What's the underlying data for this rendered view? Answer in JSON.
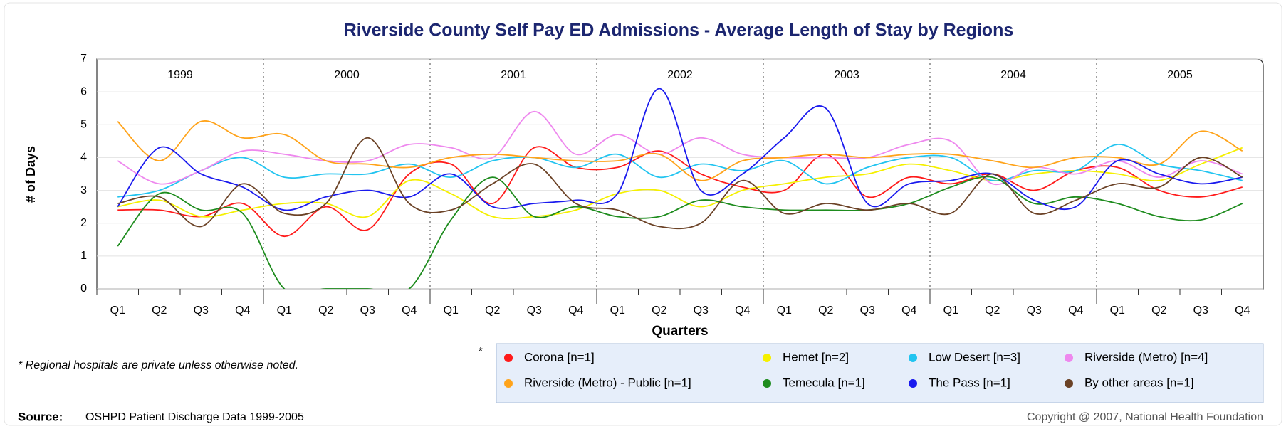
{
  "chart_data": {
    "type": "line",
    "title": "Riverside County Self Pay ED Admissions - Average Length of Stay by Regions",
    "x_label": "Quarters",
    "y_label": "# of Days",
    "years": [
      "1999",
      "2000",
      "2001",
      "2002",
      "2003",
      "2004",
      "2005"
    ],
    "categories": [
      "Q1",
      "Q2",
      "Q3",
      "Q4",
      "Q1",
      "Q2",
      "Q3",
      "Q4",
      "Q1",
      "Q2",
      "Q3",
      "Q4",
      "Q1",
      "Q2",
      "Q3",
      "Q4",
      "Q1",
      "Q2",
      "Q3",
      "Q4",
      "Q1",
      "Q2",
      "Q3",
      "Q4",
      "Q1",
      "Q2",
      "Q3",
      "Q4"
    ],
    "ylim": [
      0,
      7
    ],
    "yticks": [
      0,
      1,
      2,
      3,
      4,
      5,
      6,
      7
    ],
    "grid": true,
    "series": [
      {
        "name": "Corona [n=1]",
        "color": "#ff1a1a",
        "values": [
          2.4,
          2.4,
          2.2,
          2.6,
          1.6,
          2.5,
          1.8,
          3.5,
          3.8,
          2.6,
          4.3,
          3.7,
          3.7,
          4.2,
          3.5,
          3.1,
          3.0,
          4.1,
          2.8,
          3.4,
          3.2,
          3.5,
          3.0,
          3.6,
          3.7,
          3.0,
          2.8,
          3.1
        ]
      },
      {
        "name": "Hemet [n=2]",
        "color": "#f5f000",
        "values": [
          2.5,
          2.7,
          2.2,
          2.4,
          2.6,
          2.6,
          2.2,
          3.3,
          2.9,
          2.2,
          2.2,
          2.4,
          2.9,
          3.0,
          2.5,
          3.0,
          3.2,
          3.4,
          3.5,
          3.8,
          3.6,
          3.3,
          3.5,
          3.6,
          3.5,
          3.3,
          3.8,
          4.3
        ]
      },
      {
        "name": "Low Desert [n=3]",
        "color": "#22c4f0",
        "values": [
          2.8,
          3.0,
          3.6,
          4.0,
          3.4,
          3.5,
          3.5,
          3.8,
          3.4,
          3.9,
          4.0,
          3.7,
          4.1,
          3.4,
          3.8,
          3.6,
          3.9,
          3.2,
          3.7,
          4.0,
          4.0,
          3.3,
          3.6,
          3.6,
          4.4,
          3.8,
          3.6,
          3.3
        ]
      },
      {
        "name": "Riverside (Metro) [n=4]",
        "color": "#ee88ee",
        "values": [
          3.9,
          3.2,
          3.6,
          4.2,
          4.1,
          3.9,
          3.9,
          4.4,
          4.3,
          4.0,
          5.4,
          4.1,
          4.7,
          4.1,
          4.6,
          4.1,
          4.0,
          4.0,
          4.0,
          4.4,
          4.5,
          3.2,
          3.7,
          3.5,
          3.9,
          3.4,
          3.9,
          3.5
        ]
      },
      {
        "name": "Riverside (Metro) - Public [n=1]",
        "color": "#ffa31a",
        "values": [
          5.1,
          3.9,
          5.1,
          4.6,
          4.7,
          3.9,
          3.8,
          3.7,
          4.0,
          4.1,
          4.0,
          3.9,
          3.9,
          4.1,
          3.3,
          3.9,
          4.0,
          4.1,
          4.0,
          4.1,
          4.1,
          3.9,
          3.7,
          4.0,
          4.0,
          3.8,
          4.8,
          4.2
        ]
      },
      {
        "name": "Temecula [n=1]",
        "color": "#1e8c1e",
        "values": [
          1.3,
          2.9,
          2.4,
          2.3,
          0,
          0,
          0,
          0,
          2.1,
          3.4,
          2.2,
          2.5,
          2.2,
          2.2,
          2.7,
          2.5,
          2.4,
          2.4,
          2.4,
          2.6,
          3.1,
          3.4,
          2.6,
          2.8,
          2.6,
          2.2,
          2.1,
          2.6
        ]
      },
      {
        "name": "The Pass [n=1]",
        "color": "#1a1aee",
        "values": [
          2.5,
          4.3,
          3.5,
          3.1,
          2.4,
          2.8,
          3.0,
          2.8,
          3.5,
          2.5,
          2.6,
          2.7,
          2.9,
          6.1,
          3.0,
          3.5,
          4.6,
          5.5,
          2.6,
          3.2,
          3.3,
          3.5,
          2.7,
          2.5,
          3.9,
          3.5,
          3.2,
          3.4
        ]
      },
      {
        "name": "By other areas [n=1]",
        "color": "#6b4226",
        "values": [
          2.6,
          2.8,
          1.9,
          3.2,
          2.3,
          2.6,
          4.6,
          2.6,
          2.4,
          3.2,
          3.8,
          2.6,
          2.4,
          1.9,
          2.0,
          3.3,
          2.3,
          2.6,
          2.4,
          2.6,
          2.3,
          3.5,
          2.3,
          2.7,
          3.2,
          3.1,
          4.0,
          3.4
        ]
      }
    ],
    "note": "* Regional hospitals are private unless otherwise noted.",
    "legend_star": "*",
    "source_label": "Source:",
    "source_text": "OSHPD Patient Discharge Data 1999-2005",
    "copyright": "Copyright @ 2007, National Health Foundation"
  }
}
